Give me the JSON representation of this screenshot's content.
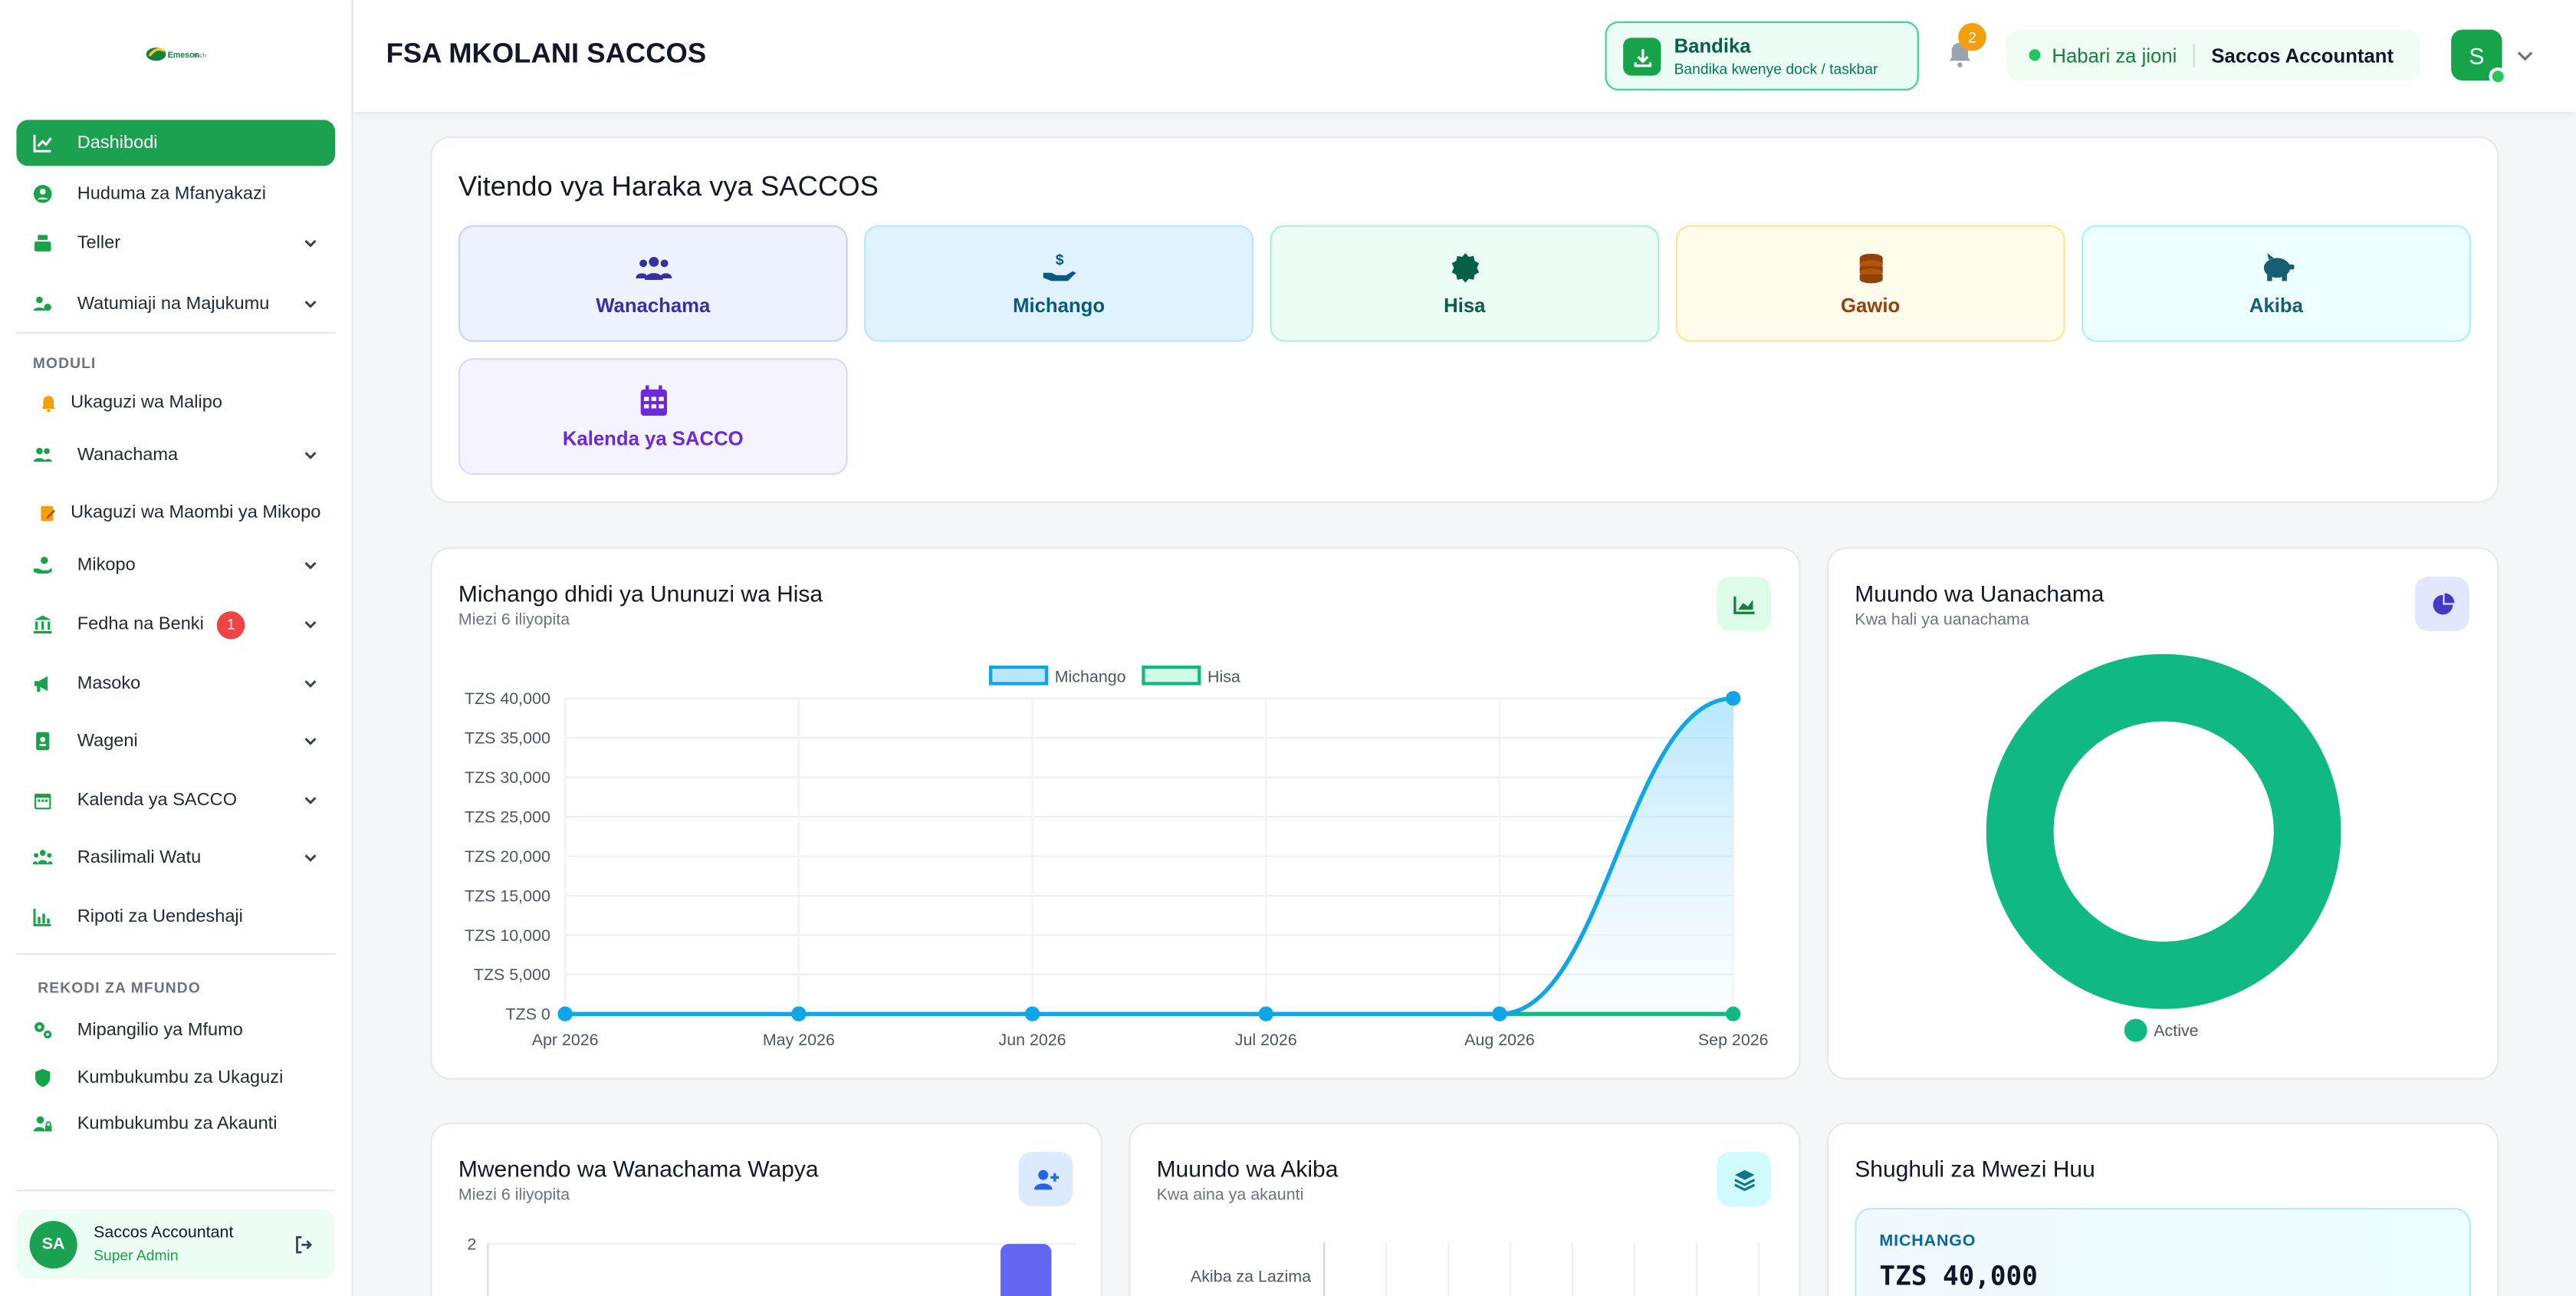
{
  "app": {
    "title": "FSA MKOLANI SACCOS",
    "logo_text": "Emeson tech"
  },
  "header": {
    "install_title": "Bandika",
    "install_sub": "Bandika kwenye dock / taskbar",
    "notifications_count": "2",
    "greeting": "Habari za jioni",
    "role": "Saccos Accountant",
    "avatar_letter": "S"
  },
  "sidebar": {
    "items": [
      {
        "label": "Dashibodi"
      },
      {
        "label": "Huduma za Mfanyakazi"
      },
      {
        "label": "Teller"
      },
      {
        "label": "Watumiaji na Majukumu"
      }
    ],
    "module_label": "MODULI",
    "modules": [
      {
        "label": "Ukaguzi wa Malipo"
      },
      {
        "label": "Wanachama"
      },
      {
        "label": "Ukaguzi wa Maombi ya Mikopo"
      },
      {
        "label": "Mikopo"
      },
      {
        "label": "Fedha na Benki",
        "badge": "1"
      },
      {
        "label": "Masoko"
      },
      {
        "label": "Wageni"
      },
      {
        "label": "Kalenda ya SACCO"
      },
      {
        "label": "Rasilimali Watu"
      },
      {
        "label": "Ripoti za Uendeshaji"
      }
    ],
    "records_label": "REKODI ZA MFUNDO",
    "records": [
      {
        "label": "Mipangilio ya Mfumo"
      },
      {
        "label": "Kumbukumbu za Ukaguzi"
      },
      {
        "label": "Kumbukumbu za Akaunti"
      }
    ],
    "user": {
      "initials": "SA",
      "name": "Saccos Accountant",
      "role": "Super Admin"
    }
  },
  "quick_actions": {
    "title": "Vitendo vya Haraka vya SACCOS",
    "items": [
      {
        "label": "Wanachama",
        "icon": "users-icon",
        "color": "#3730a3"
      },
      {
        "label": "Michango",
        "icon": "hand-coin-icon",
        "color": "#075985"
      },
      {
        "label": "Hisa",
        "icon": "certificate-icon",
        "color": "#065f46"
      },
      {
        "label": "Gawio",
        "icon": "coins-icon",
        "color": "#92400e"
      },
      {
        "label": "Akiba",
        "icon": "piggy-bank-icon",
        "color": "#155e75"
      },
      {
        "label": "Kalenda ya SACCO",
        "icon": "calendar-icon",
        "color": "#6d28d9"
      }
    ]
  },
  "contrib_card": {
    "title": "Michango dhidi ya Ununuzi wa Hisa",
    "subtitle": "Miezi 6 iliyopita"
  },
  "membership_card": {
    "title": "Muundo wa Uanachama",
    "subtitle": "Kwa hali ya uanachama"
  },
  "new_members_card": {
    "title": "Mwenendo wa Wanachama Wapya",
    "subtitle": "Miezi 6 iliyopita"
  },
  "savings_card": {
    "title": "Muundo wa Akiba",
    "subtitle": "Kwa aina ya akaunti"
  },
  "activity_card": {
    "title": "Shughuli za Mwezi Huu",
    "stat_label": "MICHANGO",
    "stat_value": "TZS 40,000"
  },
  "chart_data": [
    {
      "type": "line",
      "x": [
        "Apr 2026",
        "May 2026",
        "Jun 2026",
        "Jul 2026",
        "Aug 2026",
        "Sep 2026"
      ],
      "series": [
        {
          "name": "Michango",
          "values": [
            0,
            0,
            0,
            0,
            0,
            40000
          ],
          "color": "#0ea5e9"
        },
        {
          "name": "Hisa",
          "values": [
            0,
            0,
            0,
            0,
            0,
            0
          ],
          "color": "#10b981"
        }
      ],
      "yticks": [
        "TZS 0",
        "TZS 5,000",
        "TZS 10,000",
        "TZS 15,000",
        "TZS 20,000",
        "TZS 25,000",
        "TZS 30,000",
        "TZS 35,000",
        "TZS 40,000"
      ],
      "ylim": [
        0,
        40000
      ],
      "legend": "top-center",
      "grid": true
    },
    {
      "type": "pie",
      "categories": [
        "Active"
      ],
      "values": [
        1
      ],
      "colors": [
        "#10b981"
      ],
      "legend": "bottom"
    },
    {
      "type": "bar",
      "yticks": [
        "2"
      ],
      "values": [
        2
      ],
      "color": "#6366f1"
    },
    {
      "type": "bar",
      "categories": [
        "Akiba za Lazima"
      ],
      "orientation": "horizontal"
    }
  ]
}
